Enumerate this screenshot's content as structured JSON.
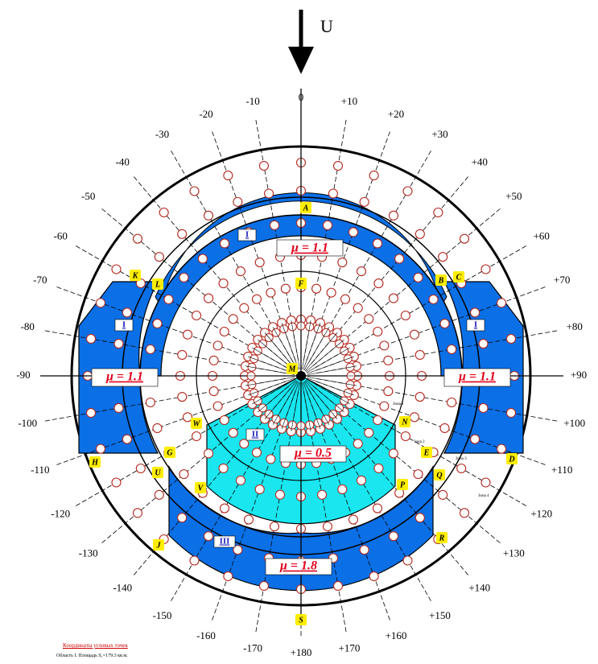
{
  "flow_label": "U",
  "angle_labels": [
    {
      "deg": 0,
      "text": "0"
    },
    {
      "deg": 10,
      "text": "+10"
    },
    {
      "deg": 20,
      "text": "+20"
    },
    {
      "deg": 30,
      "text": "+30"
    },
    {
      "deg": 40,
      "text": "+40"
    },
    {
      "deg": 50,
      "text": "+50"
    },
    {
      "deg": 60,
      "text": "+60"
    },
    {
      "deg": 70,
      "text": "+70"
    },
    {
      "deg": 80,
      "text": "+80"
    },
    {
      "deg": 90,
      "text": "+90"
    },
    {
      "deg": 100,
      "text": "+100"
    },
    {
      "deg": 110,
      "text": "+110"
    },
    {
      "deg": 120,
      "text": "+120"
    },
    {
      "deg": 130,
      "text": "+130"
    },
    {
      "deg": 140,
      "text": "+140"
    },
    {
      "deg": 150,
      "text": "+150"
    },
    {
      "deg": 160,
      "text": "+160"
    },
    {
      "deg": 170,
      "text": "+170"
    },
    {
      "deg": 180,
      "text": "+180"
    },
    {
      "deg": -10,
      "text": "-10"
    },
    {
      "deg": -20,
      "text": "-20"
    },
    {
      "deg": -30,
      "text": "-30"
    },
    {
      "deg": -40,
      "text": "-40"
    },
    {
      "deg": -50,
      "text": "-50"
    },
    {
      "deg": -60,
      "text": "-60"
    },
    {
      "deg": -70,
      "text": "-70"
    },
    {
      "deg": -80,
      "text": "-80"
    },
    {
      "deg": -90,
      "text": "-90"
    },
    {
      "deg": -100,
      "text": "-100"
    },
    {
      "deg": -110,
      "text": "-110"
    },
    {
      "deg": -120,
      "text": "-120"
    },
    {
      "deg": -130,
      "text": "-130"
    },
    {
      "deg": -140,
      "text": "-140"
    },
    {
      "deg": -150,
      "text": "-150"
    },
    {
      "deg": -160,
      "text": "-160"
    },
    {
      "deg": -170,
      "text": "-170"
    }
  ],
  "point_labels": [
    "A",
    "F",
    "B",
    "C",
    "K",
    "L",
    "M",
    "N",
    "E",
    "D",
    "Q",
    "P",
    "R",
    "W",
    "G",
    "U",
    "H",
    "V",
    "J",
    "S"
  ],
  "zones": [
    {
      "id": "top",
      "mu": "μ = 1.1",
      "zone": "I"
    },
    {
      "id": "left",
      "mu": "μ = 1.1",
      "zone": "I"
    },
    {
      "id": "right",
      "mu": "μ = 1.1",
      "zone": "I"
    },
    {
      "id": "center",
      "mu": "μ = 0.5",
      "zone": "II"
    },
    {
      "id": "bottom",
      "mu": "μ = 1.8",
      "zone": "III"
    }
  ],
  "small_notes": [
    "Зона 1",
    "Зона 2",
    "Зона 3",
    "Зона 4"
  ],
  "footer": {
    "link": "Координаты угловых точек",
    "note": "Область I. Площадь S₁=179.3 кв.м."
  },
  "colors": {
    "zone_blue": "#0b6fe6",
    "zone_cyan": "#19e6ef",
    "label_yellow": "#ffee00",
    "marker_red": "#b3281e",
    "mu_red": "#e0001b"
  }
}
